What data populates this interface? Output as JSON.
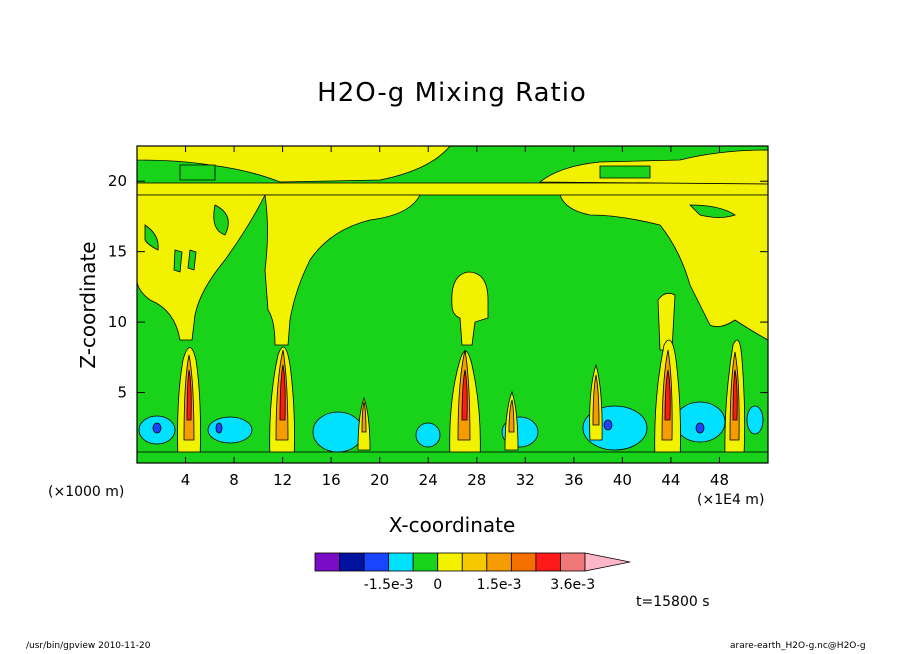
{
  "chart_data": {
    "type": "heatmap",
    "title": "H2O-g Mixing Ratio",
    "xlabel": "X-coordinate",
    "ylabel": "Z-coordinate",
    "x_unit_left": "(×1000 m)",
    "x_unit_right": "(×1E4 m)",
    "xlim": [
      0,
      52
    ],
    "ylim": [
      0,
      22.5
    ],
    "x_ticks": [
      4,
      8,
      12,
      16,
      20,
      24,
      28,
      32,
      36,
      40,
      44,
      48
    ],
    "y_ticks": [
      5,
      10,
      15,
      20
    ],
    "colorbar": {
      "colors": [
        "#7a0cc8",
        "#00129e",
        "#1a45ff",
        "#00e0ff",
        "#19d21a",
        "#f2f200",
        "#f5c800",
        "#f59c00",
        "#f57000",
        "#ff1a1a",
        "#f07878",
        "#ffb6c6"
      ],
      "tick_labels": [
        "-1.5e-3",
        "0",
        "1.5e-3",
        "3.6e-3"
      ]
    },
    "regions": [
      {
        "level": "0",
        "color": "#19d21a"
      },
      {
        "level": "positive-low",
        "color": "#f2f200"
      },
      {
        "level": "negative-low",
        "color": "#00e0ff"
      },
      {
        "level": "negative-high",
        "color": "#1a45ff"
      },
      {
        "level": "positive-mid",
        "color": "#f59c00"
      },
      {
        "level": "positive-high",
        "color": "#ff1a1a"
      }
    ]
  },
  "time_label": "t=15800 s",
  "footer_left": "/usr/bin/gpview   2010-11-20",
  "footer_right": "arare-earth_H2O-g.nc@H2O-g"
}
